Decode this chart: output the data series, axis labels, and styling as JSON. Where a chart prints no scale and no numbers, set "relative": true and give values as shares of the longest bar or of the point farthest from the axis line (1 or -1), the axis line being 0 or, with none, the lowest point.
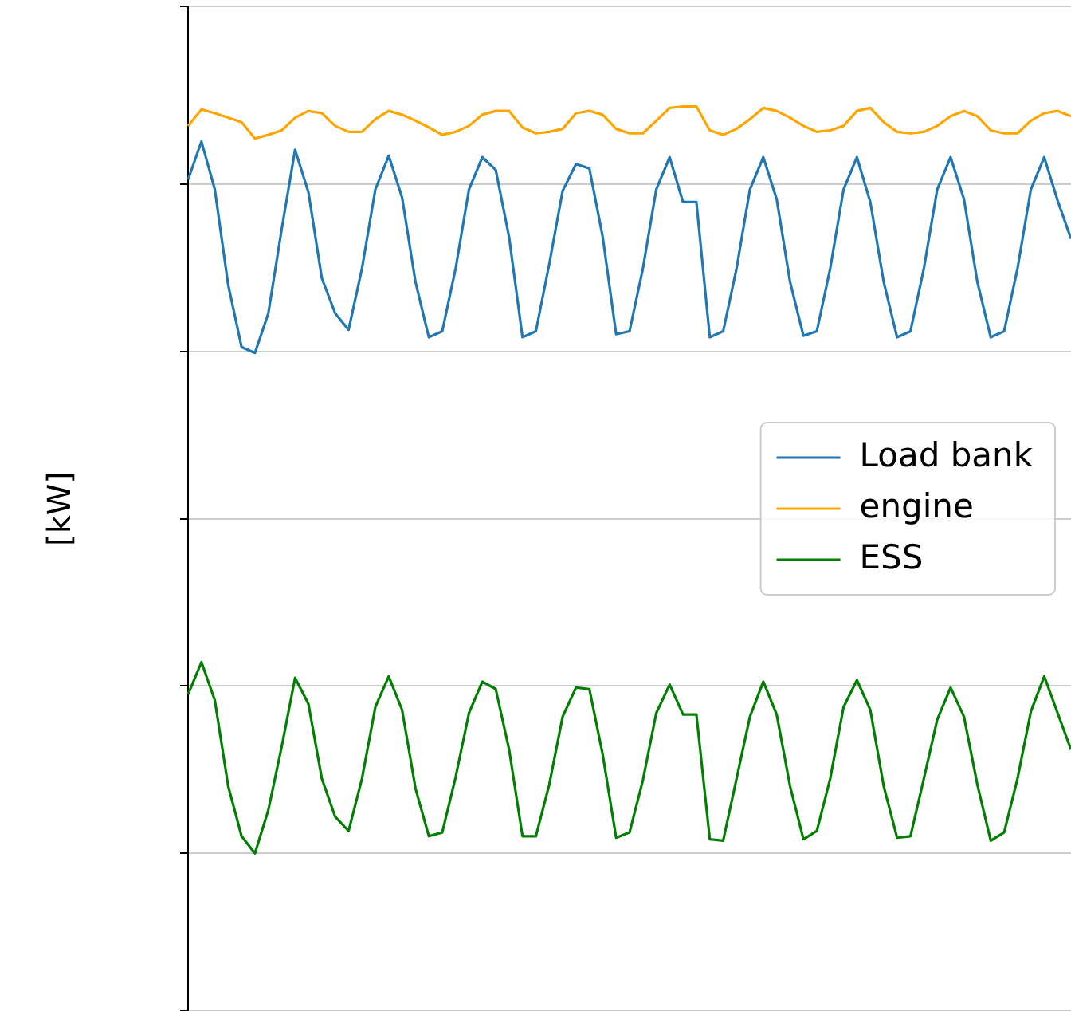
{
  "chart_data": {
    "type": "line",
    "ylabel": "[kW]",
    "relative": true,
    "grid": "y",
    "legend": "right",
    "categories": [
      null,
      null,
      null,
      null,
      null,
      null,
      null,
      null,
      null,
      null,
      null,
      null,
      null,
      null,
      null,
      null,
      null,
      null,
      null,
      null,
      null,
      null,
      null,
      null,
      null,
      null,
      null,
      null,
      null,
      null,
      null,
      null,
      null,
      null,
      null,
      null,
      null,
      null,
      null,
      null,
      null,
      null,
      null,
      null,
      null,
      null,
      null,
      null,
      null,
      null,
      null,
      null,
      null,
      null,
      null,
      null,
      null,
      null,
      null,
      null,
      null,
      null,
      null,
      null,
      null,
      null,
      null
    ],
    "series": [
      {
        "name": "Load bank",
        "color": "#1f77b4",
        "values": [
          0.902,
          0.953,
          0.889,
          0.761,
          0.678,
          0.67,
          0.723,
          0.836,
          0.942,
          0.885,
          0.77,
          0.723,
          0.701,
          0.783,
          0.889,
          0.934,
          0.878,
          0.765,
          0.691,
          0.699,
          0.783,
          0.889,
          0.932,
          0.915,
          0.825,
          0.691,
          0.699,
          0.789,
          0.887,
          0.923,
          0.917,
          0.825,
          0.695,
          0.699,
          0.783,
          0.889,
          0.932,
          0.872,
          0.872,
          0.691,
          0.699,
          0.783,
          0.889,
          0.932,
          0.876,
          0.765,
          0.693,
          0.699,
          0.783,
          0.889,
          0.932,
          0.872,
          0.765,
          0.691,
          0.699,
          0.783,
          0.889,
          0.932,
          0.876,
          0.765,
          0.691,
          0.699,
          0.783,
          0.889,
          0.932,
          0.874,
          0.823
        ]
      },
      {
        "name": "engine",
        "color": "#ffa500",
        "values": [
          0.974,
          0.996,
          0.991,
          0.985,
          0.979,
          0.957,
          0.962,
          0.968,
          0.985,
          0.994,
          0.991,
          0.974,
          0.966,
          0.966,
          0.983,
          0.994,
          0.989,
          0.981,
          0.972,
          0.962,
          0.966,
          0.974,
          0.989,
          0.994,
          0.994,
          0.972,
          0.964,
          0.966,
          0.97,
          0.991,
          0.994,
          0.989,
          0.97,
          0.964,
          0.964,
          0.981,
          0.998,
          1,
          1,
          0.968,
          0.962,
          0.97,
          0.983,
          0.998,
          0.994,
          0.985,
          0.974,
          0.966,
          0.968,
          0.974,
          0.994,
          0.998,
          0.979,
          0.966,
          0.964,
          0.966,
          0.974,
          0.987,
          0.994,
          0.987,
          0.968,
          0.964,
          0.964,
          0.981,
          0.991,
          0.994,
          0.987
        ]
      },
      {
        "name": "ESS",
        "color": "#008000",
        "values": [
          0.213,
          0.256,
          0.205,
          0.09,
          0.023,
          0,
          0.058,
          0.143,
          0.235,
          0.2,
          0.1,
          0.049,
          0.03,
          0.1,
          0.196,
          0.237,
          0.192,
          0.087,
          0.023,
          0.028,
          0.102,
          0.188,
          0.23,
          0.22,
          0.139,
          0.023,
          0.023,
          0.092,
          0.183,
          0.222,
          0.22,
          0.132,
          0.021,
          0.028,
          0.098,
          0.188,
          0.226,
          0.186,
          0.186,
          0.019,
          0.017,
          0.1,
          0.183,
          0.23,
          0.186,
          0.09,
          0.019,
          0.03,
          0.1,
          0.196,
          0.232,
          0.192,
          0.09,
          0.021,
          0.023,
          0.1,
          0.179,
          0.222,
          0.183,
          0.092,
          0.017,
          0.028,
          0.1,
          0.19,
          0.237,
          0.188,
          0.139
        ]
      }
    ]
  }
}
